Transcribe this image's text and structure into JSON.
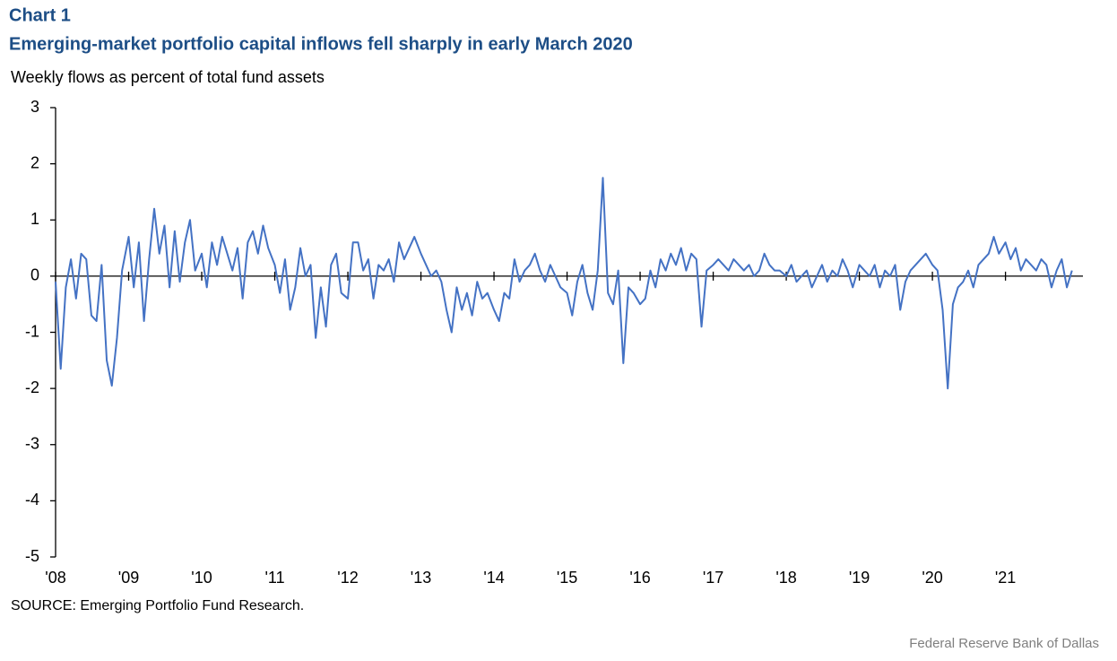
{
  "chart_data": {
    "type": "line",
    "label": "Chart 1",
    "title": "Emerging-market portfolio capital inflows fell sharply in early March 2020",
    "subtitle": "Weekly flows as percent of total fund assets",
    "source": "SOURCE: Emerging Portfolio Fund Research.",
    "credit": "Federal Reserve Bank of Dallas",
    "xlim": [
      2008,
      2022.06
    ],
    "xticks": [
      {
        "value": 2008,
        "label": "'08"
      },
      {
        "value": 2009,
        "label": "'09"
      },
      {
        "value": 2010,
        "label": "'10"
      },
      {
        "value": 2011,
        "label": "'11"
      },
      {
        "value": 2012,
        "label": "'12"
      },
      {
        "value": 2013,
        "label": "'13"
      },
      {
        "value": 2014,
        "label": "'14"
      },
      {
        "value": 2015,
        "label": "'15"
      },
      {
        "value": 2016,
        "label": "'16"
      },
      {
        "value": 2017,
        "label": "'17"
      },
      {
        "value": 2018,
        "label": "'18"
      },
      {
        "value": 2019,
        "label": "'19"
      },
      {
        "value": 2020,
        "label": "'20"
      },
      {
        "value": 2021,
        "label": "'21"
      }
    ],
    "ylim": [
      -5,
      3
    ],
    "yticks": [
      -5,
      -4,
      -3,
      -2,
      -1,
      0,
      1,
      2,
      3
    ],
    "x": [
      2008.0,
      2008.07,
      2008.14,
      2008.21,
      2008.28,
      2008.35,
      2008.42,
      2008.49,
      2008.56,
      2008.63,
      2008.7,
      2008.77,
      2008.84,
      2008.91,
      2009.0,
      2009.07,
      2009.14,
      2009.21,
      2009.28,
      2009.35,
      2009.42,
      2009.49,
      2009.56,
      2009.63,
      2009.7,
      2009.77,
      2009.84,
      2009.91,
      2010.0,
      2010.07,
      2010.14,
      2010.21,
      2010.28,
      2010.35,
      2010.42,
      2010.49,
      2010.56,
      2010.63,
      2010.7,
      2010.77,
      2010.84,
      2010.91,
      2011.0,
      2011.07,
      2011.14,
      2011.21,
      2011.28,
      2011.35,
      2011.42,
      2011.49,
      2011.56,
      2011.63,
      2011.7,
      2011.77,
      2011.84,
      2011.91,
      2012.0,
      2012.07,
      2012.14,
      2012.21,
      2012.28,
      2012.35,
      2012.42,
      2012.49,
      2012.56,
      2012.63,
      2012.7,
      2012.77,
      2012.84,
      2012.91,
      2013.0,
      2013.07,
      2013.14,
      2013.21,
      2013.28,
      2013.35,
      2013.42,
      2013.49,
      2013.56,
      2013.63,
      2013.7,
      2013.77,
      2013.84,
      2013.91,
      2014.0,
      2014.07,
      2014.14,
      2014.21,
      2014.28,
      2014.35,
      2014.42,
      2014.49,
      2014.56,
      2014.63,
      2014.7,
      2014.77,
      2014.84,
      2014.91,
      2015.0,
      2015.07,
      2015.14,
      2015.21,
      2015.28,
      2015.35,
      2015.42,
      2015.49,
      2015.56,
      2015.63,
      2015.7,
      2015.77,
      2015.84,
      2015.91,
      2016.0,
      2016.07,
      2016.14,
      2016.21,
      2016.28,
      2016.35,
      2016.42,
      2016.49,
      2016.56,
      2016.63,
      2016.7,
      2016.77,
      2016.84,
      2016.91,
      2017.0,
      2017.07,
      2017.14,
      2017.21,
      2017.28,
      2017.35,
      2017.42,
      2017.49,
      2017.56,
      2017.63,
      2017.7,
      2017.77,
      2017.84,
      2017.91,
      2018.0,
      2018.07,
      2018.14,
      2018.21,
      2018.28,
      2018.35,
      2018.42,
      2018.49,
      2018.56,
      2018.63,
      2018.7,
      2018.77,
      2018.84,
      2018.91,
      2019.0,
      2019.07,
      2019.14,
      2019.21,
      2019.28,
      2019.35,
      2019.42,
      2019.49,
      2019.56,
      2019.63,
      2019.7,
      2019.77,
      2019.84,
      2019.91,
      2020.0,
      2020.07,
      2020.14,
      2020.21,
      2020.28,
      2020.35,
      2020.42,
      2020.49,
      2020.56,
      2020.63,
      2020.7,
      2020.77,
      2020.84,
      2020.91,
      2021.0,
      2021.07,
      2021.14,
      2021.21,
      2021.28,
      2021.35,
      2021.42,
      2021.49,
      2021.56,
      2021.63,
      2021.7,
      2021.77,
      2021.84,
      2021.91
    ],
    "series": [
      {
        "color": "#4472c4",
        "values": [
          -0.1,
          -1.65,
          -0.2,
          0.3,
          -0.4,
          0.4,
          0.3,
          -0.7,
          -0.8,
          0.2,
          -1.5,
          -1.95,
          -1.1,
          0.1,
          0.7,
          -0.2,
          0.6,
          -0.8,
          0.3,
          1.2,
          0.4,
          0.9,
          -0.2,
          0.8,
          -0.1,
          0.6,
          1.0,
          0.1,
          0.4,
          -0.2,
          0.6,
          0.2,
          0.7,
          0.4,
          0.1,
          0.5,
          -0.4,
          0.6,
          0.8,
          0.4,
          0.9,
          0.5,
          0.2,
          -0.3,
          0.3,
          -0.6,
          -0.2,
          0.5,
          0,
          0.2,
          -1.1,
          -0.2,
          -0.9,
          0.2,
          0.4,
          -0.3,
          -0.4,
          0.6,
          0.6,
          0.1,
          0.3,
          -0.4,
          0.2,
          0.1,
          0.3,
          -0.1,
          0.6,
          0.3,
          0.5,
          0.7,
          0.4,
          0.2,
          0,
          0.1,
          -0.1,
          -0.6,
          -1.0,
          -0.2,
          -0.6,
          -0.3,
          -0.7,
          -0.1,
          -0.4,
          -0.3,
          -0.6,
          -0.8,
          -0.3,
          -0.4,
          0.3,
          -0.1,
          0.1,
          0.2,
          0.4,
          0.1,
          -0.1,
          0.2,
          0,
          -0.2,
          -0.3,
          -0.7,
          -0.1,
          0.2,
          -0.3,
          -0.6,
          0.1,
          1.75,
          -0.3,
          -0.5,
          0.1,
          -1.55,
          -0.2,
          -0.3,
          -0.5,
          -0.4,
          0.1,
          -0.2,
          0.3,
          0.1,
          0.4,
          0.2,
          0.5,
          0.1,
          0.4,
          0.3,
          -0.9,
          0.1,
          0.2,
          0.3,
          0.2,
          0.1,
          0.3,
          0.2,
          0.1,
          0.2,
          0,
          0.1,
          0.4,
          0.2,
          0.1,
          0.1,
          0,
          0.2,
          -0.1,
          0,
          0.1,
          -0.2,
          0,
          0.2,
          -0.1,
          0.1,
          0,
          0.3,
          0.1,
          -0.2,
          0.2,
          0.1,
          0,
          0.2,
          -0.2,
          0.1,
          0,
          0.2,
          -0.6,
          -0.1,
          0.1,
          0.2,
          0.3,
          0.4,
          0.2,
          0.1,
          -0.6,
          -2.0,
          -0.5,
          -0.2,
          -0.1,
          0.1,
          -0.2,
          0.2,
          0.3,
          0.4,
          0.7,
          0.4,
          0.6,
          0.3,
          0.5,
          0.1,
          0.3,
          0.2,
          0.1,
          0.3,
          0.2,
          -0.2,
          0.1,
          0.3,
          -0.2,
          0.1
        ]
      }
    ]
  }
}
